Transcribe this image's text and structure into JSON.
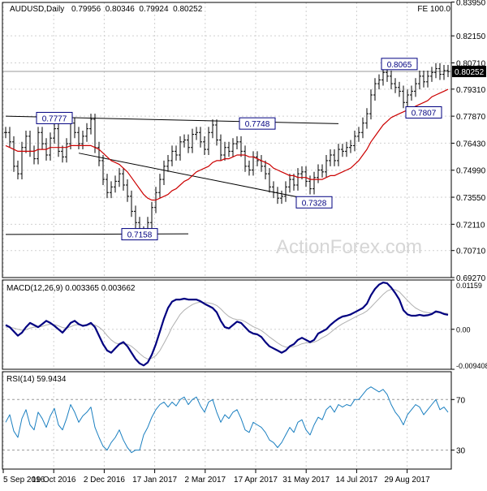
{
  "colors": {
    "price": "#000000",
    "ma": "#cc0000",
    "macd": "#000080",
    "signal": "#b0b0b0",
    "rsi": "#1a7fc0",
    "label_border": "#000080",
    "label_text": "#000080",
    "grid": "#d0d0d0",
    "watermark": "#d6d6d6"
  },
  "header": {
    "symbol_tf": "AUDUSD,Daily",
    "ohlc": "0.79956  0.80346  0.79924  0.80252",
    "fe_label": "FE 100.0"
  },
  "watermark": "ActionForex.com",
  "chart_data": [
    {
      "type": "line",
      "panel": "price",
      "ylim": [
        0.6927,
        0.8393
      ],
      "yticks": [
        "0.83950",
        "0.82150",
        "0.80710",
        "0.79310",
        "0.77870",
        "0.76430",
        "0.74990",
        "0.73550",
        "0.72110",
        "0.70710",
        "0.69270"
      ],
      "current_price": "0.80252",
      "x_labels": [
        "5 Sep 2016",
        "19 Oct 2016",
        "2 Dec 2016",
        "17 Jan 2017",
        "2 Mar 2017",
        "17 Apr 2017",
        "31 May 2017",
        "14 Jul 2017",
        "29 Aug 2017"
      ],
      "series": [
        {
          "key": "close",
          "values": [
            0.77,
            0.765,
            0.752,
            0.748,
            0.762,
            0.768,
            0.76,
            0.756,
            0.77,
            0.764,
            0.758,
            0.767,
            0.772,
            0.76,
            0.757,
            0.764,
            0.775,
            0.77,
            0.764,
            0.768,
            0.772,
            0.777,
            0.762,
            0.755,
            0.745,
            0.738,
            0.741,
            0.744,
            0.748,
            0.742,
            0.736,
            0.728,
            0.722,
            0.717,
            0.716,
            0.722,
            0.73,
            0.738,
            0.745,
            0.752,
            0.755,
            0.76,
            0.758,
            0.765,
            0.766,
            0.762,
            0.769,
            0.77,
            0.765,
            0.761,
            0.77,
            0.774,
            0.766,
            0.758,
            0.762,
            0.76,
            0.764,
            0.765,
            0.76,
            0.752,
            0.75,
            0.757,
            0.755,
            0.752,
            0.748,
            0.741,
            0.738,
            0.735,
            0.736,
            0.741,
            0.745,
            0.742,
            0.748,
            0.749,
            0.744,
            0.74,
            0.746,
            0.75,
            0.749,
            0.755,
            0.758,
            0.755,
            0.761,
            0.76,
            0.762,
            0.763,
            0.768,
            0.77,
            0.775,
            0.78,
            0.79,
            0.796,
            0.798,
            0.802,
            0.8,
            0.796,
            0.794,
            0.792,
            0.786,
            0.79,
            0.792,
            0.796,
            0.8,
            0.797,
            0.8,
            0.802,
            0.804,
            0.801,
            0.803,
            0.8025
          ]
        },
        {
          "key": "ma",
          "values": [
            0.763,
            0.762,
            0.761,
            0.76,
            0.76,
            0.76,
            0.76,
            0.76,
            0.761,
            0.761,
            0.761,
            0.762,
            0.762,
            0.762,
            0.762,
            0.762,
            0.763,
            0.763,
            0.763,
            0.763,
            0.763,
            0.763,
            0.762,
            0.761,
            0.759,
            0.757,
            0.755,
            0.754,
            0.753,
            0.751,
            0.749,
            0.746,
            0.743,
            0.74,
            0.737,
            0.735,
            0.734,
            0.734,
            0.735,
            0.736,
            0.737,
            0.739,
            0.74,
            0.742,
            0.744,
            0.745,
            0.747,
            0.749,
            0.75,
            0.751,
            0.752,
            0.754,
            0.755,
            0.755,
            0.756,
            0.756,
            0.757,
            0.758,
            0.758,
            0.758,
            0.757,
            0.757,
            0.756,
            0.755,
            0.754,
            0.753,
            0.751,
            0.75,
            0.749,
            0.748,
            0.747,
            0.747,
            0.746,
            0.746,
            0.746,
            0.745,
            0.745,
            0.745,
            0.745,
            0.746,
            0.747,
            0.747,
            0.748,
            0.749,
            0.75,
            0.751,
            0.753,
            0.755,
            0.758,
            0.761,
            0.765,
            0.768,
            0.771,
            0.774,
            0.776,
            0.778,
            0.779,
            0.78,
            0.781,
            0.782,
            0.783,
            0.784,
            0.785,
            0.786,
            0.787,
            0.789,
            0.79,
            0.791,
            0.792,
            0.793
          ]
        }
      ],
      "trendlines": [
        {
          "points": [
            [
              0,
              0.7787
            ],
            [
              82,
              0.7747
            ]
          ]
        },
        {
          "points": [
            [
              0,
              0.7157
            ],
            [
              45,
              0.716
            ]
          ]
        },
        {
          "points": [
            [
              18,
              0.759
            ],
            [
              78,
              0.733
            ]
          ]
        }
      ],
      "annotations": [
        {
          "text": "0.7777",
          "i": 12,
          "y": 0.7777
        },
        {
          "text": "0.7748",
          "i": 62,
          "y": 0.7748
        },
        {
          "text": "0.7328",
          "i": 76,
          "y": 0.7328
        },
        {
          "text": "0.7158",
          "i": 33,
          "y": 0.7158
        },
        {
          "text": "0.8065",
          "i": 97,
          "y": 0.8065
        },
        {
          "text": "0.7807",
          "i": 103,
          "y": 0.7807
        }
      ]
    },
    {
      "type": "line",
      "panel": "macd",
      "title": "MACD(12,26,9) 0.003365 0.003662",
      "ylim": [
        -0.0094,
        0.01159
      ],
      "yticks": [
        "0.01159",
        "0.00",
        "-0.009408"
      ],
      "series": [
        {
          "key": "macd",
          "values": [
            0.001,
            0.0005,
            -0.0005,
            -0.0015,
            -0.0008,
            0.0005,
            0.0015,
            0.001,
            0.0005,
            0.0012,
            0.002,
            0.0015,
            0.0008,
            0.0,
            -0.0008,
            0.0003,
            0.0015,
            0.002,
            0.0012,
            0.0008,
            0.001,
            0.0015,
            0.0005,
            -0.0015,
            -0.0035,
            -0.005,
            -0.0055,
            -0.0045,
            -0.0035,
            -0.003,
            -0.004,
            -0.0055,
            -0.007,
            -0.008,
            -0.0085,
            -0.0078,
            -0.006,
            -0.0035,
            -0.0005,
            0.0025,
            0.005,
            0.0065,
            0.007,
            0.007,
            0.0072,
            0.007,
            0.007,
            0.007,
            0.0066,
            0.006,
            0.0055,
            0.005,
            0.004,
            0.002,
            0.0005,
            0.0002,
            0.001,
            0.0018,
            0.0015,
            0.0005,
            -0.0005,
            -0.001,
            -0.0012,
            -0.0018,
            -0.003,
            -0.004,
            -0.0045,
            -0.005,
            -0.0055,
            -0.005,
            -0.004,
            -0.0035,
            -0.0025,
            -0.002,
            -0.0025,
            -0.003,
            -0.0025,
            -0.001,
            -0.0005,
            0.0,
            0.001,
            0.0018,
            0.0025,
            0.003,
            0.0032,
            0.0035,
            0.004,
            0.0045,
            0.005,
            0.006,
            0.008,
            0.0095,
            0.0105,
            0.011,
            0.0108,
            0.0098,
            0.0085,
            0.007,
            0.0045,
            0.0035,
            0.0032,
            0.0032,
            0.0034,
            0.0032,
            0.0033,
            0.0036,
            0.0042,
            0.004,
            0.0036,
            0.0034
          ]
        },
        {
          "key": "signal",
          "values": [
            0.0005,
            0.0005,
            0.0003,
            0.0,
            -0.0002,
            -0.0001,
            0.0003,
            0.0005,
            0.0005,
            0.0007,
            0.001,
            0.0012,
            0.0011,
            0.0008,
            0.0004,
            0.0003,
            0.0006,
            0.001,
            0.0011,
            0.001,
            0.001,
            0.0011,
            0.001,
            0.0005,
            -0.0003,
            -0.0015,
            -0.0025,
            -0.0032,
            -0.0035,
            -0.0034,
            -0.0035,
            -0.004,
            -0.0048,
            -0.0057,
            -0.0065,
            -0.007,
            -0.0068,
            -0.0062,
            -0.005,
            -0.0033,
            -0.0015,
            0.0005,
            0.002,
            0.0035,
            0.0045,
            0.0052,
            0.0058,
            0.0062,
            0.0064,
            0.0063,
            0.0062,
            0.006,
            0.0056,
            0.0048,
            0.0038,
            0.003,
            0.0025,
            0.0023,
            0.0022,
            0.0018,
            0.0012,
            0.0006,
            0.0002,
            -0.0003,
            -0.001,
            -0.0018,
            -0.0025,
            -0.0032,
            -0.0038,
            -0.0042,
            -0.0042,
            -0.0041,
            -0.0038,
            -0.0034,
            -0.0032,
            -0.0032,
            -0.003,
            -0.0026,
            -0.002,
            -0.0015,
            -0.0008,
            0.0,
            0.0007,
            0.0013,
            0.0018,
            0.0023,
            0.0028,
            0.0033,
            0.0037,
            0.0043,
            0.0052,
            0.0062,
            0.0072,
            0.0082,
            0.009,
            0.0094,
            0.0093,
            0.0088,
            0.0078,
            0.0068,
            0.0058,
            0.005,
            0.0045,
            0.0041,
            0.0039,
            0.0038,
            0.0039,
            0.0039,
            0.0038,
            0.0037
          ]
        }
      ]
    },
    {
      "type": "line",
      "panel": "rsi",
      "title": "RSI(14) 59.9434",
      "ylim": [
        15,
        92
      ],
      "yticks": [
        "70",
        "30"
      ],
      "levels": [
        70,
        30
      ],
      "series": [
        {
          "key": "rsi",
          "values": [
            52,
            58,
            45,
            40,
            55,
            62,
            50,
            46,
            60,
            55,
            48,
            57,
            63,
            50,
            46,
            55,
            66,
            60,
            52,
            57,
            60,
            64,
            48,
            40,
            33,
            30,
            36,
            40,
            46,
            38,
            32,
            28,
            30,
            30,
            42,
            48,
            56,
            62,
            66,
            68,
            64,
            68,
            65,
            70,
            72,
            66,
            70,
            72,
            65,
            60,
            68,
            70,
            60,
            52,
            58,
            55,
            60,
            62,
            55,
            46,
            44,
            52,
            50,
            48,
            44,
            38,
            36,
            32,
            36,
            42,
            48,
            44,
            52,
            54,
            46,
            42,
            50,
            56,
            54,
            62,
            65,
            60,
            66,
            64,
            66,
            65,
            70,
            70,
            74,
            78,
            80,
            78,
            76,
            78,
            74,
            66,
            60,
            56,
            50,
            58,
            62,
            66,
            64,
            58,
            62,
            66,
            70,
            62,
            64,
            60
          ]
        }
      ]
    }
  ]
}
